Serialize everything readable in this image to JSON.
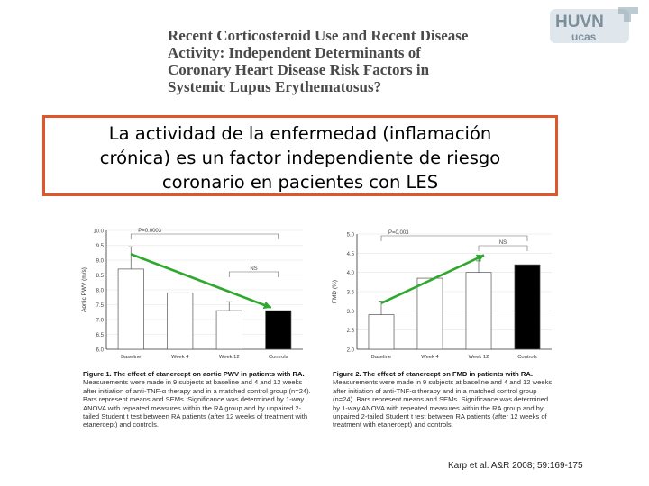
{
  "article_title": {
    "lines": [
      "Recent Corticosteroid Use and Recent Disease",
      "Activity: Independent Determinants of",
      "Coronary Heart Disease Risk Factors in",
      "Systemic Lupus Erythematosus?"
    ]
  },
  "logo": {
    "top": "HUVN",
    "bottom": "ucas"
  },
  "callout": {
    "lines": [
      "La actividad de la enfermedad (inflamación",
      "crónica) es un factor independiente de riesgo",
      "coronario en pacientes con LES"
    ],
    "border_color": "#e0552a"
  },
  "chart_data": [
    {
      "type": "bar",
      "categories": [
        "Baseline",
        "Week 4",
        "Week 12",
        "Controls"
      ],
      "values": [
        8.7,
        7.9,
        7.3,
        7.3
      ],
      "errors": [
        0.75,
        0,
        0.3,
        0
      ],
      "bar_colors": [
        "#ffffff",
        "#ffffff",
        "#ffffff",
        "#000000"
      ],
      "ylabel": "Aortic PWV (m/s)",
      "ylim": [
        6.0,
        10.0
      ],
      "yticks": [
        "6.0",
        "6.5",
        "7.0",
        "7.5",
        "8.0",
        "8.5",
        "9.0",
        "9.5",
        "10.0"
      ],
      "annotations": [
        "P=0.0003",
        "NS"
      ],
      "arrow": {
        "from": [
          "Baseline",
          9.2
        ],
        "to": [
          "Controls",
          7.4
        ],
        "color": "#2ea82e"
      },
      "caption_label": "Figure 1.",
      "caption_title": "The effect of etanercept on aortic PWV in patients with RA.",
      "caption_body": "Measurements were made in 9 subjects at baseline and 4 and 12 weeks after initiation of anti-TNF-α therapy and in a matched control group (n=24). Bars represent means and SEMs. Significance was determined by 1-way ANOVA with repeated measures within the RA group and by unpaired 2-tailed Student t test between RA patients (after 12 weeks of treatment with etanercept) and controls."
    },
    {
      "type": "bar",
      "categories": [
        "Baseline",
        "Week 4",
        "Week 12",
        "Controls"
      ],
      "values": [
        2.9,
        3.85,
        4.0,
        4.2
      ],
      "errors": [
        0.35,
        0,
        0.3,
        0
      ],
      "bar_colors": [
        "#ffffff",
        "#ffffff",
        "#ffffff",
        "#000000"
      ],
      "ylabel": "FMD (%)",
      "ylim": [
        2.0,
        5.0
      ],
      "yticks": [
        "2.0",
        "2.5",
        "3.0",
        "3.5",
        "4.0",
        "4.5",
        "5.0"
      ],
      "annotations": [
        "P=0.003",
        "NS"
      ],
      "arrow": {
        "from": [
          "Baseline",
          3.2
        ],
        "to": [
          "Week 12",
          4.45
        ],
        "color": "#2ea82e"
      },
      "caption_label": "Figure 2.",
      "caption_title": "The effect of etanercept on FMD in patients with RA.",
      "caption_body": "Measurements were made in 9 subjects at baseline and 4 and 12 weeks after initiation of anti-TNF-α therapy and in a matched control group (n=24). Bars represent means and SEMs. Significance was determined by 1-way ANOVA with repeated measures within the RA group and by unpaired 2-tailed Student t test between RA patients (after 12 weeks of treatment with etanercept) and controls."
    }
  ],
  "citation": "Karp et al. A&R 2008; 59:169-175"
}
